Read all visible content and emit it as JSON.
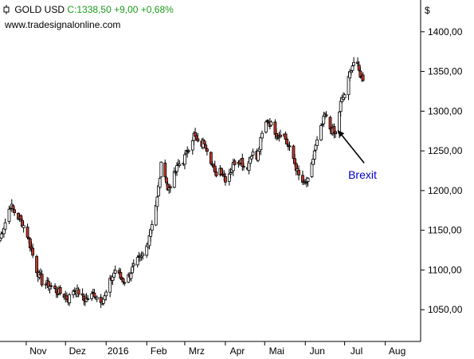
{
  "header": {
    "symbol": "GOLD USD",
    "quote": "C:1338,50 +9,00 +0,68%",
    "site": "www.tradesignalonline.com"
  },
  "colors": {
    "up": "#ffffff",
    "down": "#c0392b",
    "wick": "#000000",
    "quote": "#1a9c1a",
    "annotation": "#0000cc",
    "axis": "#000000"
  },
  "chart_data": {
    "type": "candlestick",
    "title": "GOLD USD",
    "currency_label": "$",
    "y_ticks": [
      "1050,00",
      "1100,00",
      "1150,00",
      "1200,00",
      "1250,00",
      "1300,00",
      "1350,00",
      "1400,00"
    ],
    "ylim": [
      1010,
      1440
    ],
    "x_ticks": [
      "Nov",
      "Dez",
      "2016",
      "Feb",
      "Mrz",
      "Apr",
      "Mai",
      "Jun",
      "Jul",
      "Aug"
    ],
    "x_tick_dates": [
      "2015-11-01",
      "2015-12-01",
      "2016-01-01",
      "2016-02-01",
      "2016-03-01",
      "2016-04-01",
      "2016-05-01",
      "2016-06-01",
      "2016-07-01",
      "2016-08-01"
    ],
    "xlim": [
      "2015-10-12",
      "2016-08-28"
    ],
    "grid": false,
    "close_path": [
      [
        "2015-10-12",
        1140
      ],
      [
        "2015-10-16",
        1160
      ],
      [
        "2015-10-20",
        1182
      ],
      [
        "2015-10-24",
        1170
      ],
      [
        "2015-10-28",
        1162
      ],
      [
        "2015-11-01",
        1150
      ],
      [
        "2015-11-05",
        1125
      ],
      [
        "2015-11-09",
        1100
      ],
      [
        "2015-11-13",
        1085
      ],
      [
        "2015-11-17",
        1082
      ],
      [
        "2015-11-21",
        1078
      ],
      [
        "2015-11-25",
        1072
      ],
      [
        "2015-11-29",
        1070
      ],
      [
        "2015-12-03",
        1063
      ],
      [
        "2015-12-07",
        1075
      ],
      [
        "2015-12-11",
        1072
      ],
      [
        "2015-12-15",
        1062
      ],
      [
        "2015-12-19",
        1065
      ],
      [
        "2015-12-23",
        1070
      ],
      [
        "2015-12-27",
        1062
      ],
      [
        "2015-12-31",
        1066
      ],
      [
        "2016-01-04",
        1085
      ],
      [
        "2016-01-08",
        1100
      ],
      [
        "2016-01-12",
        1090
      ],
      [
        "2016-01-16",
        1085
      ],
      [
        "2016-01-20",
        1098
      ],
      [
        "2016-01-24",
        1110
      ],
      [
        "2016-01-28",
        1115
      ],
      [
        "2016-02-01",
        1130
      ],
      [
        "2016-02-05",
        1160
      ],
      [
        "2016-02-09",
        1190
      ],
      [
        "2016-02-13",
        1245
      ],
      [
        "2016-02-17",
        1200
      ],
      [
        "2016-02-21",
        1215
      ],
      [
        "2016-02-25",
        1232
      ],
      [
        "2016-02-29",
        1238
      ],
      [
        "2016-03-04",
        1255
      ],
      [
        "2016-03-08",
        1270
      ],
      [
        "2016-03-12",
        1255
      ],
      [
        "2016-03-16",
        1262
      ],
      [
        "2016-03-20",
        1245
      ],
      [
        "2016-03-24",
        1220
      ],
      [
        "2016-03-28",
        1228
      ],
      [
        "2016-04-01",
        1215
      ],
      [
        "2016-04-05",
        1225
      ],
      [
        "2016-04-09",
        1240
      ],
      [
        "2016-04-13",
        1238
      ],
      [
        "2016-04-17",
        1225
      ],
      [
        "2016-04-21",
        1248
      ],
      [
        "2016-04-25",
        1240
      ],
      [
        "2016-04-29",
        1270
      ],
      [
        "2016-05-03",
        1290
      ],
      [
        "2016-05-07",
        1280
      ],
      [
        "2016-05-11",
        1270
      ],
      [
        "2016-05-15",
        1275
      ],
      [
        "2016-05-19",
        1255
      ],
      [
        "2016-05-23",
        1240
      ],
      [
        "2016-05-27",
        1218
      ],
      [
        "2016-05-31",
        1208
      ],
      [
        "2016-06-04",
        1212
      ],
      [
        "2016-06-08",
        1250
      ],
      [
        "2016-06-12",
        1272
      ],
      [
        "2016-06-16",
        1295
      ],
      [
        "2016-06-20",
        1278
      ],
      [
        "2016-06-24",
        1270
      ],
      [
        "2016-06-28",
        1310
      ],
      [
        "2016-07-02",
        1325
      ],
      [
        "2016-07-06",
        1355
      ],
      [
        "2016-07-09",
        1365
      ],
      [
        "2016-07-12",
        1350
      ],
      [
        "2016-07-15",
        1338.5
      ]
    ],
    "annotations": [
      {
        "text": "Brexit",
        "arrow_to_date": "2016-06-24",
        "arrow_to_value": 1272
      }
    ]
  }
}
